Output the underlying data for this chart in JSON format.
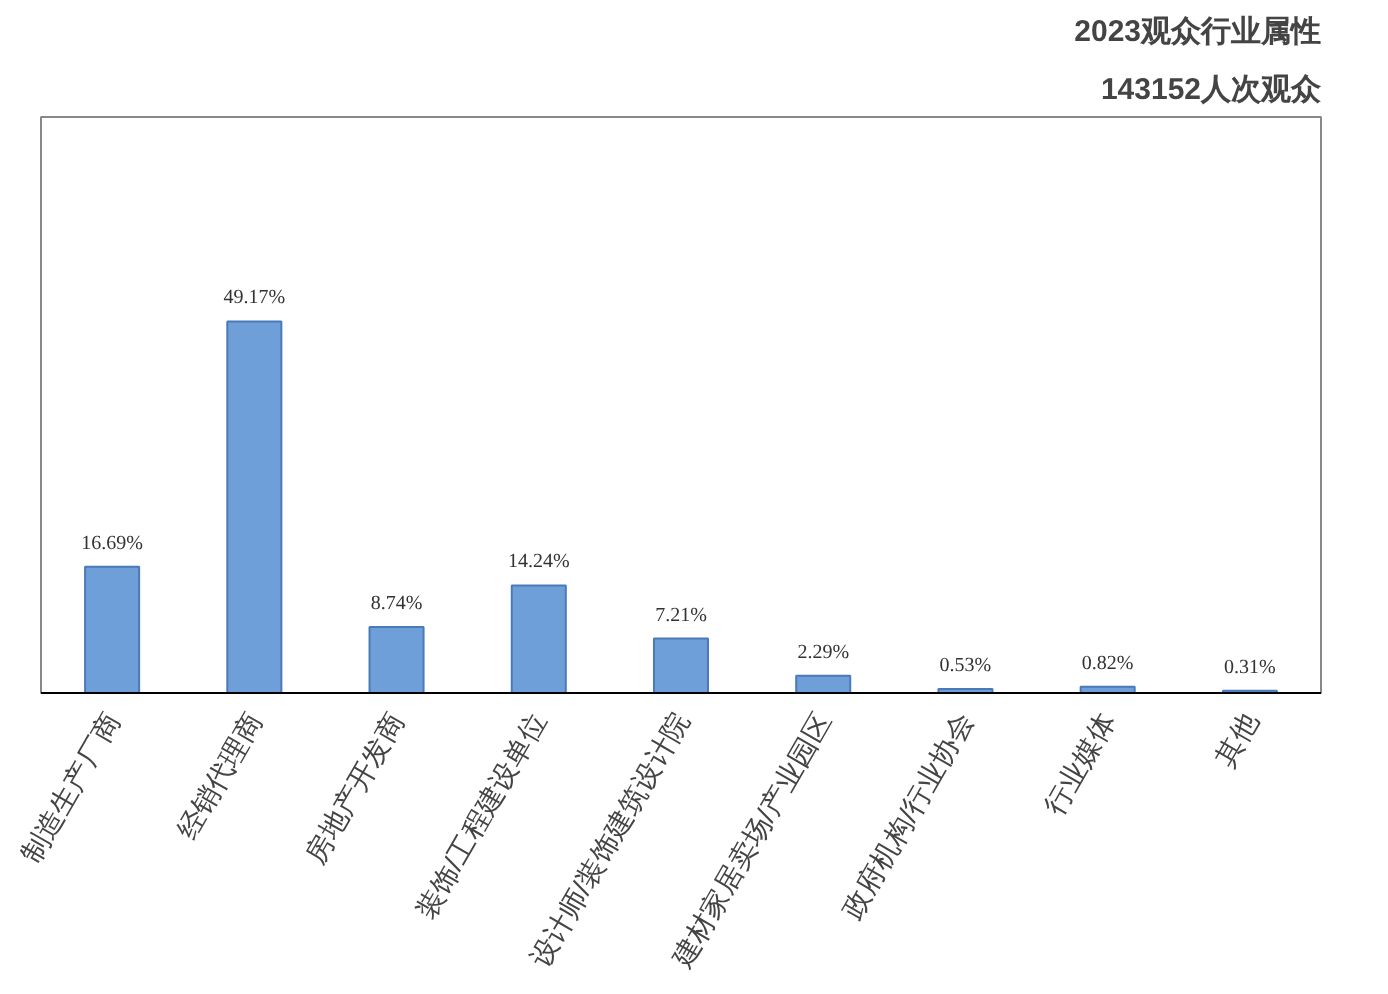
{
  "chart_data": {
    "type": "bar",
    "title": "2023观众行业属性",
    "subtitle": "143152人次观众",
    "categories": [
      "制造生产厂商",
      "经销代理商",
      "房地产开发商",
      "装饰/工程建设单位",
      "设计师/装饰建筑设计院",
      "建材家居卖场/产业园区",
      "政府机构/行业协会",
      "行业媒体",
      "其他"
    ],
    "values": [
      16.69,
      49.17,
      8.74,
      14.24,
      7.21,
      2.29,
      0.53,
      0.82,
      0.31
    ],
    "value_labels": [
      "16.69%",
      "49.17%",
      "8.74%",
      "14.24%",
      "7.21%",
      "2.29%",
      "0.53%",
      "0.82%",
      "0.31%"
    ],
    "color": "#6f9fd8",
    "grid": false
  }
}
